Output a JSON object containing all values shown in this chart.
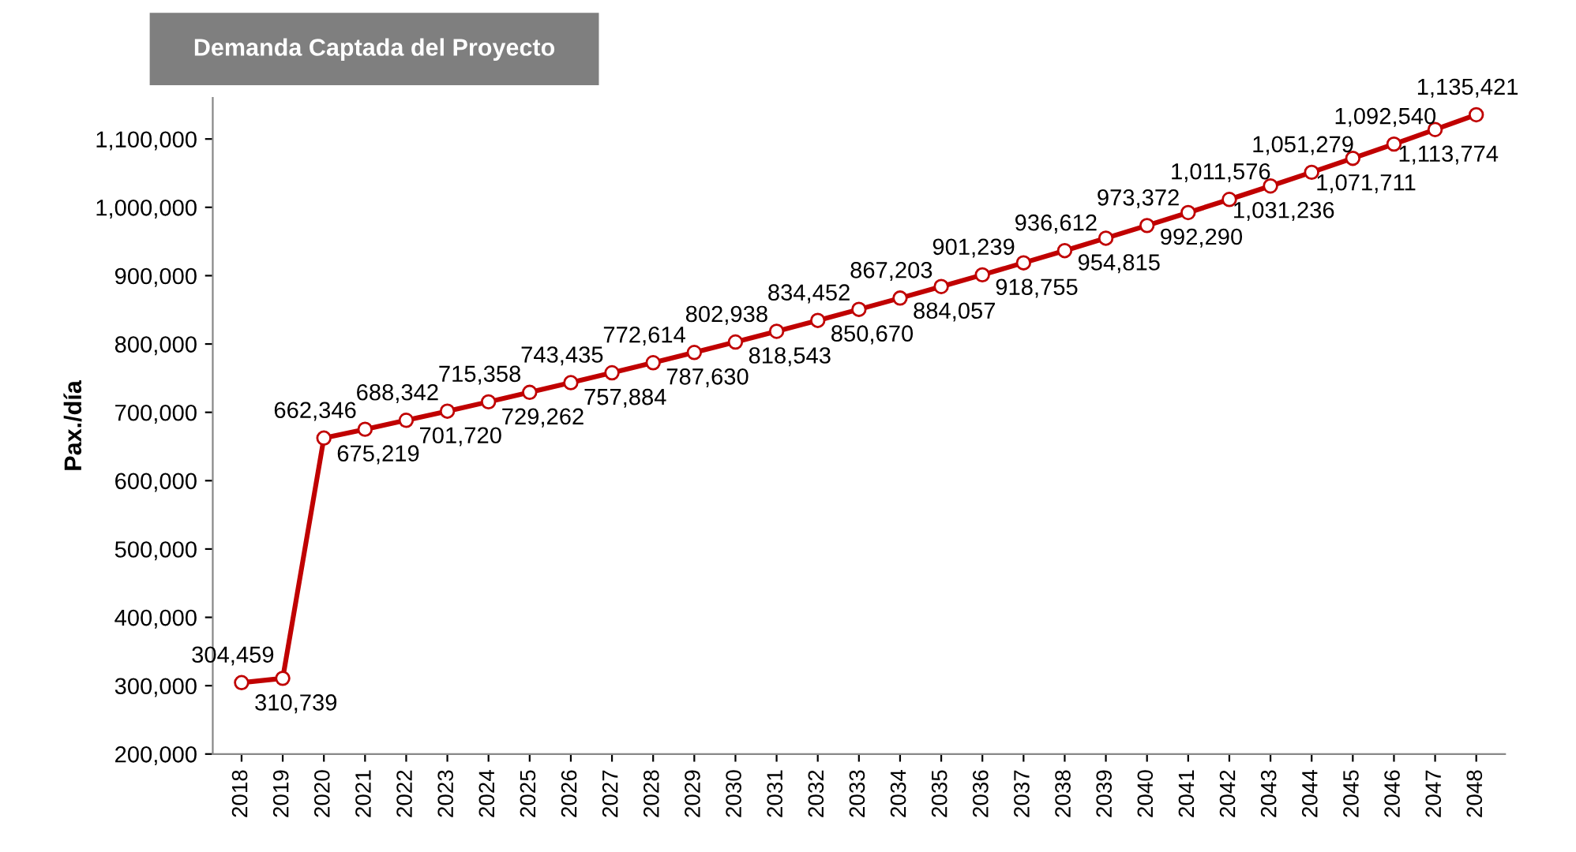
{
  "chart_data": {
    "type": "line",
    "title": "Demanda Captada del Proyecto",
    "ylabel": "Pax./día",
    "categories": [
      "2018",
      "2019",
      "2020",
      "2021",
      "2022",
      "2023",
      "2024",
      "2025",
      "2026",
      "2027",
      "2028",
      "2029",
      "2030",
      "2031",
      "2032",
      "2033",
      "2034",
      "2035",
      "2036",
      "2037",
      "2038",
      "2039",
      "2040",
      "2041",
      "2042",
      "2043",
      "2044",
      "2045",
      "2046",
      "2047",
      "2048"
    ],
    "series": [
      {
        "color": "#c00000",
        "values": [
          304459,
          310739,
          662346,
          675219,
          688342,
          701720,
          715358,
          729262,
          743435,
          757884,
          772614,
          787630,
          802938,
          818543,
          834452,
          850670,
          867203,
          884057,
          901239,
          918755,
          936612,
          954815,
          973372,
          992290,
          1011576,
          1031236,
          1051279,
          1071711,
          1092540,
          1113774,
          1135421
        ],
        "value_labels": [
          "304,459",
          "310,739",
          "662,346",
          "675,219",
          "688,342",
          "701,720",
          "715,358",
          "729,262",
          "743,435",
          "757,884",
          "772,614",
          "787,630",
          "802,938",
          "818,543",
          "834,452",
          "850,670",
          "867,203",
          "884,057",
          "901,239",
          "918,755",
          "936,612",
          "954,815",
          "973,372",
          "992,290",
          "1,011,576",
          "1,031,236",
          "1,051,279",
          "1,071,711",
          "1,092,540",
          "1,113,774",
          "1,135,421"
        ]
      }
    ],
    "ylim": [
      200000,
      1160000
    ],
    "yticks": [
      {
        "value": 200000,
        "label": "200,000"
      },
      {
        "value": 300000,
        "label": "300,000"
      },
      {
        "value": 400000,
        "label": "400,000"
      },
      {
        "value": 500000,
        "label": "500,000"
      },
      {
        "value": 600000,
        "label": "600,000"
      },
      {
        "value": 700000,
        "label": "700,000"
      },
      {
        "value": 800000,
        "label": "800,000"
      },
      {
        "value": 900000,
        "label": "900,000"
      },
      {
        "value": 1000000,
        "label": "1,000,000"
      },
      {
        "value": 1100000,
        "label": "1,100,000"
      }
    ],
    "marker": "circle",
    "line_style": "solid",
    "grid": false,
    "legend": false
  }
}
